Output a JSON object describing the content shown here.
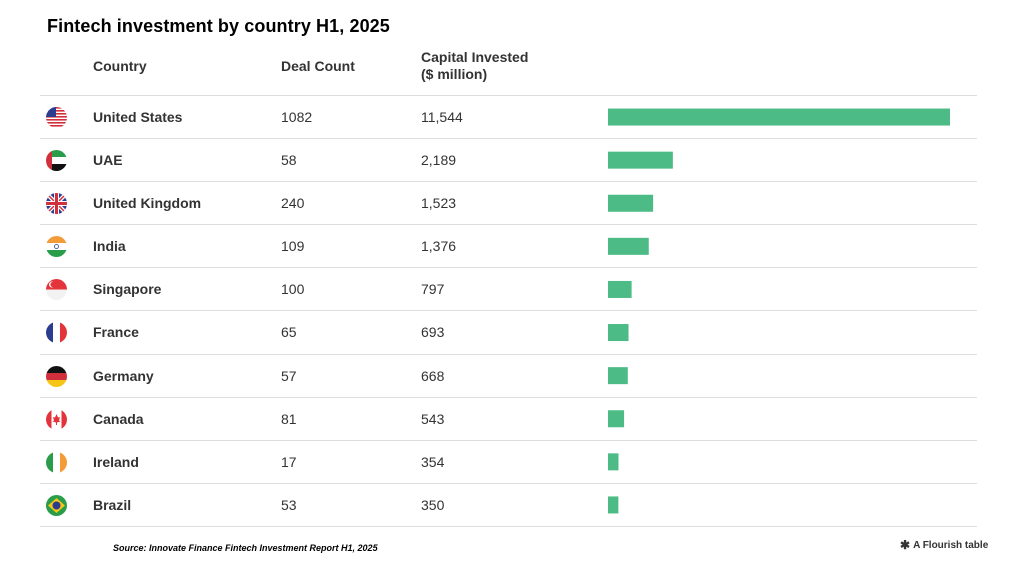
{
  "title": "Fintech investment by country H1, 2025",
  "columns": {
    "country": "Country",
    "deal_count": "Deal Count",
    "capital_line1": "Capital Invested",
    "capital_line2": "($ million)"
  },
  "bar_color": "#4cbb85",
  "source": "Source: Innovate Finance Fintech Investment Report H1, 2025",
  "flourish_label": "A Flourish table",
  "chart_data": {
    "type": "table",
    "rows": [
      {
        "country": "United States",
        "flag": "us-flag-icon",
        "deals": "1082",
        "capital_label": "11,544",
        "capital": 11544
      },
      {
        "country": "UAE",
        "flag": "uae-flag-icon",
        "deals": "58",
        "capital_label": "2,189",
        "capital": 2189
      },
      {
        "country": "United Kingdom",
        "flag": "uk-flag-icon",
        "deals": "240",
        "capital_label": "1,523",
        "capital": 1523
      },
      {
        "country": "India",
        "flag": "india-flag-icon",
        "deals": "109",
        "capital_label": "1,376",
        "capital": 1376
      },
      {
        "country": "Singapore",
        "flag": "singapore-flag-icon",
        "deals": "100",
        "capital_label": "797",
        "capital": 797
      },
      {
        "country": "France",
        "flag": "france-flag-icon",
        "deals": "65",
        "capital_label": "693",
        "capital": 693
      },
      {
        "country": "Germany",
        "flag": "germany-flag-icon",
        "deals": "57",
        "capital_label": "668",
        "capital": 668
      },
      {
        "country": "Canada",
        "flag": "canada-flag-icon",
        "deals": "81",
        "capital_label": "543",
        "capital": 543
      },
      {
        "country": "Ireland",
        "flag": "ireland-flag-icon",
        "deals": "17",
        "capital_label": "354",
        "capital": 354
      },
      {
        "country": "Brazil",
        "flag": "brazil-flag-icon",
        "deals": "53",
        "capital_label": "350",
        "capital": 350
      }
    ]
  }
}
